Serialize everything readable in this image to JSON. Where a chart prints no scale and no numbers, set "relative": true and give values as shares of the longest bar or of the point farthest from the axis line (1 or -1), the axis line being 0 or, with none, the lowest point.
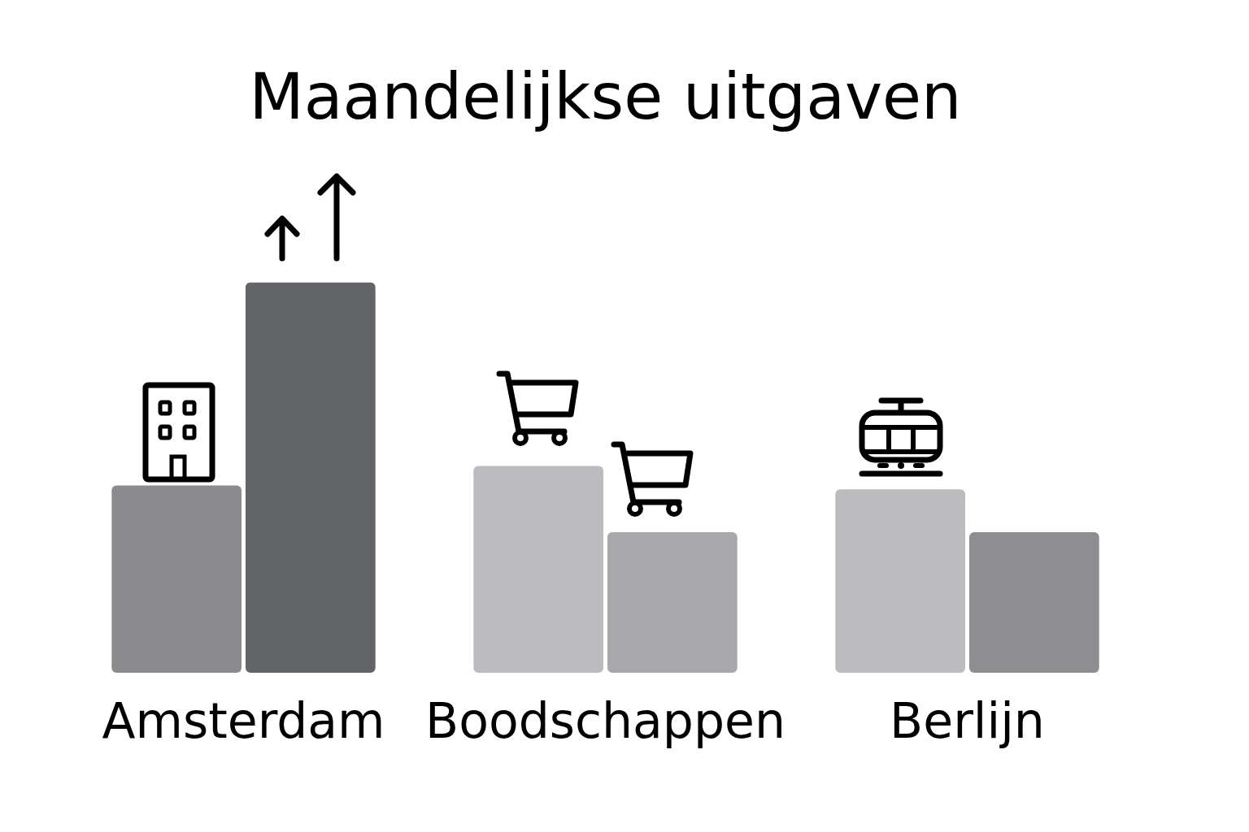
{
  "chart_data": {
    "type": "bar",
    "title": "Maandelijkse uitgaven",
    "categories": [
      "Amsterdam",
      "Boodschappen",
      "Berlijn"
    ],
    "relative": true,
    "series": [
      {
        "colors": [
          "#8b8b8d",
          "#bcbcbf",
          "#bcbcbf"
        ],
        "values": [
          0.48,
          0.53,
          0.47
        ]
      },
      {
        "colors": [
          "#636468",
          "#a8a8aa",
          "#8e8e90"
        ],
        "values": [
          1,
          0.36,
          0.36
        ]
      }
    ]
  }
}
